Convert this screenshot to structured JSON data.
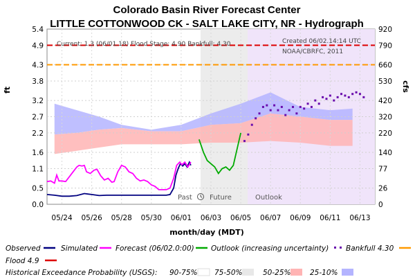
{
  "chart_data": {
    "type": "line",
    "title": "Colorado Basin River Forecast Center",
    "subtitle": "LITTLE COTTONWOOD CK - SALT LAKE CITY, NR - Hydrograph",
    "xlabel": "month/day (MDT)",
    "ylabel_left": "ft",
    "ylabel_right": "cfs",
    "x_ticks": [
      "05/24",
      "05/26",
      "05/28",
      "05/30",
      "06/01",
      "06/03",
      "06/05",
      "06/07",
      "06/09",
      "06/11",
      "06/13"
    ],
    "y_left_ticks": [
      "0.0",
      "0.5",
      "1.1",
      "1.6",
      "2.2",
      "2.7",
      "3.2",
      "3.8",
      "4.3",
      "4.9",
      "5.4"
    ],
    "y_right_ticks": [
      "0",
      "26",
      "77",
      "140",
      "220",
      "320",
      "420",
      "530",
      "660",
      "790",
      "920"
    ],
    "ylim_left": [
      0,
      5.4
    ],
    "info_line": "Current: 1.3 (06/01.18)  Flood Stage: 4.90  Bankfull: 4.30",
    "created": "Created 06/02.14:14 UTC",
    "credit": "NOAA/CBRFC, 2011",
    "zones": {
      "past": "Past",
      "future": "Future",
      "outlook": "Outlook"
    },
    "flood_stage": 4.9,
    "bankfull_stage": 4.3,
    "series": [
      {
        "name": "Observed",
        "color": "#000080",
        "points": [
          [
            0,
            0.3
          ],
          [
            1,
            0.28
          ],
          [
            2,
            0.25
          ],
          [
            3,
            0.25
          ],
          [
            4,
            0.27
          ],
          [
            5,
            0.33
          ],
          [
            6,
            0.3
          ],
          [
            7,
            0.27
          ],
          [
            8,
            0.28
          ],
          [
            9,
            0.28
          ],
          [
            10,
            0.28
          ],
          [
            11,
            0.28
          ],
          [
            12,
            0.28
          ],
          [
            13,
            0.28
          ],
          [
            14,
            0.28
          ],
          [
            15,
            0.28
          ],
          [
            16,
            0.28
          ],
          [
            16.5,
            0.3
          ],
          [
            17,
            0.5
          ],
          [
            17.3,
            0.9
          ],
          [
            17.6,
            1.1
          ],
          [
            17.9,
            1.25
          ],
          [
            18.2,
            1.18
          ],
          [
            18.5,
            1.25
          ],
          [
            18.8,
            1.15
          ],
          [
            19.1,
            1.3
          ],
          [
            19.3,
            1.2
          ]
        ]
      },
      {
        "name": "Simulated",
        "color": "#000080",
        "points": []
      },
      {
        "name": "Forecast (06/02.0:00)",
        "color": "#ff00ff",
        "points": [
          [
            0,
            0.7
          ],
          [
            0.5,
            0.72
          ],
          [
            1,
            0.65
          ],
          [
            1.3,
            0.9
          ],
          [
            1.6,
            0.72
          ],
          [
            2,
            0.72
          ],
          [
            2.5,
            0.7
          ],
          [
            3,
            0.85
          ],
          [
            3.5,
            1.0
          ],
          [
            4,
            1.15
          ],
          [
            4.3,
            1.2
          ],
          [
            4.7,
            1.18
          ],
          [
            5,
            1.2
          ],
          [
            5.3,
            1.0
          ],
          [
            5.8,
            0.95
          ],
          [
            6.3,
            1.05
          ],
          [
            6.7,
            1.08
          ],
          [
            7.2,
            0.88
          ],
          [
            7.7,
            0.75
          ],
          [
            8.2,
            0.8
          ],
          [
            8.7,
            0.68
          ],
          [
            9,
            0.7
          ],
          [
            9.5,
            1.0
          ],
          [
            10,
            1.2
          ],
          [
            10.5,
            1.15
          ],
          [
            11,
            1.0
          ],
          [
            11.5,
            0.95
          ],
          [
            12,
            0.8
          ],
          [
            12.5,
            0.72
          ],
          [
            13,
            0.75
          ],
          [
            13.5,
            0.7
          ],
          [
            14,
            0.6
          ],
          [
            14.5,
            0.55
          ],
          [
            15,
            0.45
          ],
          [
            15.5,
            0.45
          ],
          [
            16,
            0.45
          ],
          [
            16.5,
            0.5
          ],
          [
            17,
            0.8
          ],
          [
            17.4,
            1.2
          ],
          [
            17.8,
            1.3
          ],
          [
            18.1,
            1.22
          ],
          [
            18.5,
            1.3
          ],
          [
            18.9,
            1.15
          ],
          [
            19.3,
            1.3
          ]
        ]
      },
      {
        "name": "Outlook (increasing uncertainty)",
        "color": "#00aa00",
        "points": [
          [
            20.4,
            2.0
          ],
          [
            21,
            1.6
          ],
          [
            21.5,
            1.35
          ],
          [
            22,
            1.25
          ],
          [
            22.5,
            1.15
          ],
          [
            23,
            0.95
          ],
          [
            23.5,
            1.1
          ],
          [
            24,
            1.15
          ],
          [
            24.5,
            1.05
          ],
          [
            25,
            1.2
          ],
          [
            25.5,
            1.7
          ],
          [
            26,
            2.2
          ]
        ]
      },
      {
        "name": "Bankfull 4.30",
        "color": "#6a0dad",
        "style": "dots",
        "points": [
          [
            26.5,
            1.95
          ],
          [
            27,
            2.15
          ],
          [
            27.5,
            2.45
          ],
          [
            28,
            2.65
          ],
          [
            28.5,
            2.8
          ],
          [
            29,
            3.0
          ],
          [
            29.5,
            3.05
          ],
          [
            30,
            2.9
          ],
          [
            30.5,
            3.05
          ],
          [
            31,
            2.9
          ],
          [
            31.5,
            3.0
          ],
          [
            32,
            2.75
          ],
          [
            32.5,
            2.9
          ],
          [
            33,
            3.0
          ],
          [
            33.5,
            2.8
          ],
          [
            34,
            3.0
          ],
          [
            34.5,
            2.95
          ],
          [
            35,
            3.1
          ],
          [
            35.5,
            3.0
          ],
          [
            36,
            3.2
          ],
          [
            36.5,
            3.1
          ],
          [
            37,
            3.3
          ],
          [
            37.5,
            3.25
          ],
          [
            38,
            3.35
          ],
          [
            38.5,
            3.2
          ],
          [
            39,
            3.3
          ],
          [
            39.5,
            3.4
          ],
          [
            40,
            3.35
          ],
          [
            40.5,
            3.3
          ],
          [
            41,
            3.4
          ],
          [
            41.5,
            3.45
          ],
          [
            42,
            3.4
          ],
          [
            42.5,
            3.3
          ]
        ]
      },
      {
        "name": "Flood 4.9",
        "color": "#dd0000",
        "points": []
      }
    ],
    "bands": [
      {
        "name": "25-10%",
        "color": "#b4b4ff",
        "upper": [
          [
            1,
            3.1
          ],
          [
            4,
            2.9
          ],
          [
            7,
            2.7
          ],
          [
            10,
            2.45
          ],
          [
            14,
            2.3
          ],
          [
            18,
            2.45
          ],
          [
            22,
            2.8
          ],
          [
            26,
            3.1
          ],
          [
            30,
            3.45
          ],
          [
            34,
            3.0
          ],
          [
            38,
            2.9
          ],
          [
            41,
            2.95
          ]
        ],
        "lower": [
          [
            1,
            2.15
          ],
          [
            4,
            2.2
          ],
          [
            7,
            2.3
          ],
          [
            10,
            2.35
          ],
          [
            14,
            2.25
          ],
          [
            18,
            2.25
          ],
          [
            22,
            2.45
          ],
          [
            26,
            2.5
          ],
          [
            30,
            2.8
          ],
          [
            34,
            2.7
          ],
          [
            38,
            2.6
          ],
          [
            41,
            2.6
          ]
        ]
      },
      {
        "name": "50-25%",
        "color": "#ffb4b4",
        "upper": [
          [
            1,
            2.15
          ],
          [
            4,
            2.2
          ],
          [
            7,
            2.3
          ],
          [
            10,
            2.35
          ],
          [
            14,
            2.25
          ],
          [
            18,
            2.25
          ],
          [
            22,
            2.45
          ],
          [
            26,
            2.5
          ],
          [
            30,
            2.8
          ],
          [
            34,
            2.7
          ],
          [
            38,
            2.6
          ],
          [
            41,
            2.6
          ]
        ],
        "lower": [
          [
            1,
            1.55
          ],
          [
            4,
            1.65
          ],
          [
            7,
            1.75
          ],
          [
            10,
            1.85
          ],
          [
            14,
            1.85
          ],
          [
            18,
            1.85
          ],
          [
            22,
            1.9
          ],
          [
            26,
            1.9
          ],
          [
            30,
            1.95
          ],
          [
            34,
            1.9
          ],
          [
            38,
            1.8
          ],
          [
            41,
            1.8
          ]
        ]
      }
    ],
    "legend": {
      "row1": [
        "Observed",
        "Simulated",
        "Forecast (06/02.0:00)",
        "Outlook (increasing uncertainty)",
        "Bankfull 4.30"
      ],
      "row2": [
        "Flood 4.9"
      ],
      "row3_label": "Historical Exceedance Probability (USGS):",
      "row3": [
        "90-75%",
        "75-50%",
        "50-25%",
        "25-10%"
      ],
      "swatches": {
        "90-75%": "#ffffff",
        "75-50%": "#e8e8e8",
        "50-25%": "#ffb4b4",
        "25-10%": "#b4b4ff"
      }
    },
    "grid": true,
    "legend_placement": "bottom"
  }
}
